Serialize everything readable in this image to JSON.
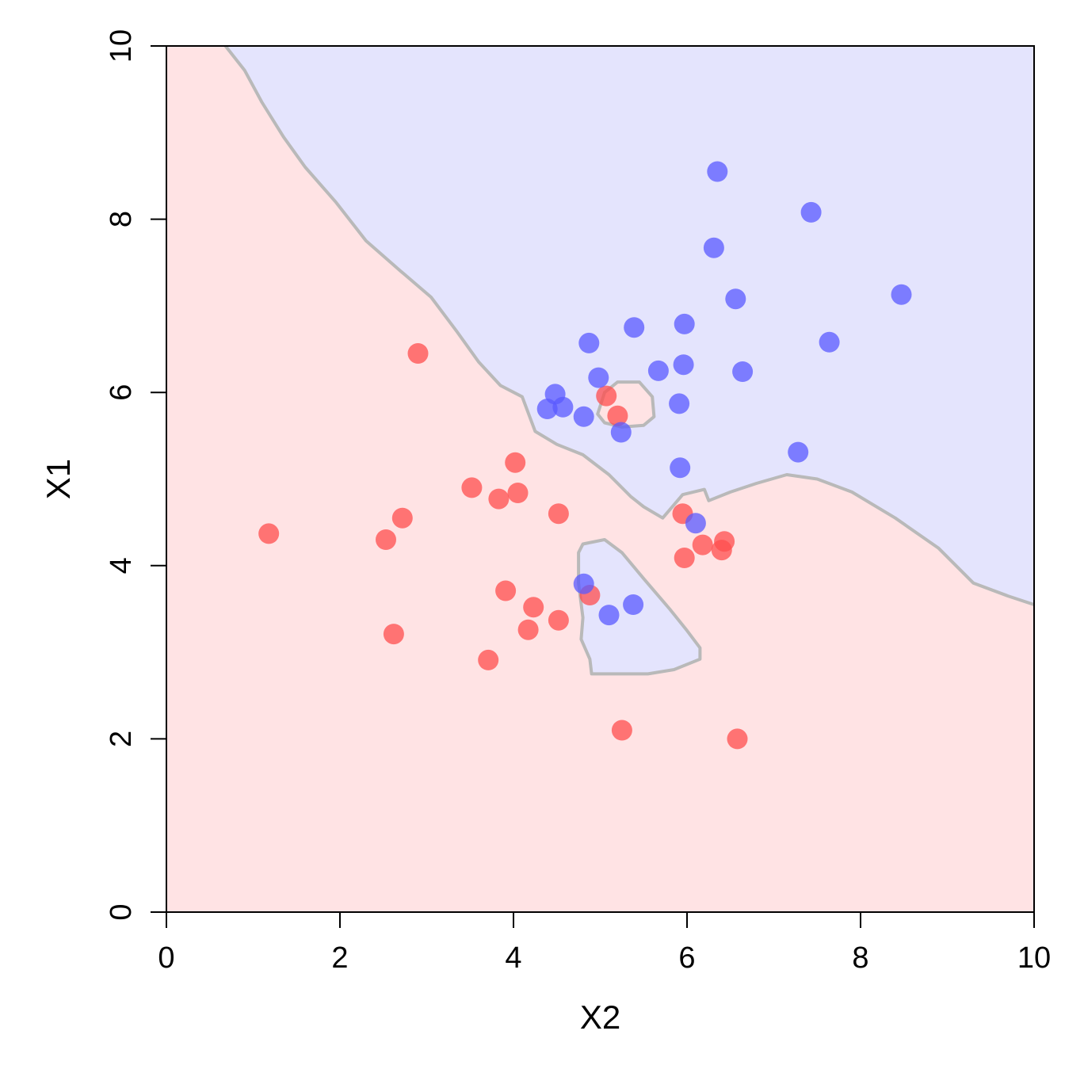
{
  "chart_data": {
    "type": "scatter",
    "title": "",
    "xlabel": "X2",
    "ylabel": "X1",
    "xlim": [
      0,
      10
    ],
    "ylim": [
      0,
      10
    ],
    "x_ticks": [
      "0",
      "2",
      "4",
      "6",
      "8",
      "10"
    ],
    "y_ticks": [
      "0",
      "2",
      "4",
      "6",
      "8",
      "10"
    ],
    "grid": false,
    "legend": "none",
    "regions": [
      {
        "name": "",
        "color": "#ffe3e4",
        "description_class": "red"
      },
      {
        "name": "",
        "color": "#e4e4fd",
        "description_class": "blue",
        "boundary": [
          [
            0.68,
            10.0
          ],
          [
            0.9,
            9.72
          ],
          [
            1.1,
            9.35
          ],
          [
            1.35,
            8.95
          ],
          [
            1.6,
            8.6
          ],
          [
            1.95,
            8.2
          ],
          [
            2.3,
            7.75
          ],
          [
            2.7,
            7.4
          ],
          [
            3.05,
            7.1
          ],
          [
            3.35,
            6.7
          ],
          [
            3.6,
            6.35
          ],
          [
            3.85,
            6.08
          ],
          [
            4.1,
            5.95
          ],
          [
            4.25,
            5.55
          ],
          [
            4.5,
            5.4
          ],
          [
            4.8,
            5.28
          ],
          [
            5.1,
            5.05
          ],
          [
            5.35,
            4.8
          ],
          [
            5.5,
            4.68
          ],
          [
            5.72,
            4.55
          ],
          [
            5.95,
            4.82
          ],
          [
            6.2,
            4.88
          ],
          [
            6.25,
            4.75
          ],
          [
            6.5,
            4.85
          ],
          [
            6.8,
            4.95
          ],
          [
            7.15,
            5.05
          ],
          [
            7.5,
            5.0
          ],
          [
            7.9,
            4.85
          ],
          [
            8.4,
            4.55
          ],
          [
            8.9,
            4.2
          ],
          [
            9.3,
            3.8
          ],
          [
            9.7,
            3.65
          ],
          [
            10.0,
            3.55
          ],
          [
            10.0,
            10.0
          ]
        ],
        "island": [
          [
            4.8,
            4.25
          ],
          [
            5.05,
            4.3
          ],
          [
            5.25,
            4.15
          ],
          [
            5.5,
            3.85
          ],
          [
            5.8,
            3.5
          ],
          [
            6.0,
            3.25
          ],
          [
            6.15,
            3.05
          ],
          [
            6.15,
            2.92
          ],
          [
            5.85,
            2.8
          ],
          [
            5.55,
            2.75
          ],
          [
            5.2,
            2.75
          ],
          [
            4.9,
            2.75
          ],
          [
            4.88,
            2.92
          ],
          [
            4.78,
            3.15
          ],
          [
            4.8,
            3.4
          ],
          [
            4.75,
            3.8
          ],
          [
            4.75,
            4.15
          ]
        ],
        "hole": [
          [
            4.97,
            5.75
          ],
          [
            5.05,
            6.0
          ],
          [
            5.2,
            6.12
          ],
          [
            5.45,
            6.12
          ],
          [
            5.6,
            5.95
          ],
          [
            5.62,
            5.72
          ],
          [
            5.5,
            5.62
          ],
          [
            5.25,
            5.6
          ],
          [
            5.05,
            5.65
          ]
        ]
      }
    ],
    "boundary_color": "#b9b9b9",
    "series": [
      {
        "name": "",
        "color": "#ff4d4d",
        "x": [
          2.9,
          1.18,
          2.53,
          2.72,
          2.62,
          3.52,
          3.83,
          4.05,
          4.02,
          4.52,
          3.91,
          4.23,
          4.17,
          4.52,
          3.71,
          4.88,
          5.07,
          5.2,
          5.95,
          5.97,
          6.18,
          6.4,
          6.43,
          5.25,
          6.58
        ],
        "y": [
          6.45,
          4.37,
          4.3,
          4.55,
          3.21,
          4.9,
          4.77,
          4.84,
          5.19,
          4.6,
          3.71,
          3.52,
          3.26,
          3.37,
          2.91,
          3.66,
          5.96,
          5.73,
          4.6,
          4.09,
          4.24,
          4.18,
          4.28,
          2.1,
          2.0
        ]
      },
      {
        "name": "",
        "color": "#5959ff",
        "x": [
          6.35,
          7.43,
          6.31,
          6.56,
          8.47,
          7.64,
          5.39,
          5.97,
          4.87,
          5.96,
          5.67,
          6.64,
          4.98,
          4.48,
          4.39,
          4.57,
          4.81,
          5.24,
          5.91,
          5.92,
          7.28,
          6.1,
          4.81,
          5.1,
          5.38
        ],
        "y": [
          8.55,
          8.08,
          7.67,
          7.08,
          7.13,
          6.58,
          6.75,
          6.79,
          6.57,
          6.32,
          6.25,
          6.24,
          6.17,
          5.98,
          5.81,
          5.83,
          5.72,
          5.54,
          5.87,
          5.13,
          5.31,
          4.49,
          3.79,
          3.43,
          3.55
        ]
      }
    ]
  }
}
